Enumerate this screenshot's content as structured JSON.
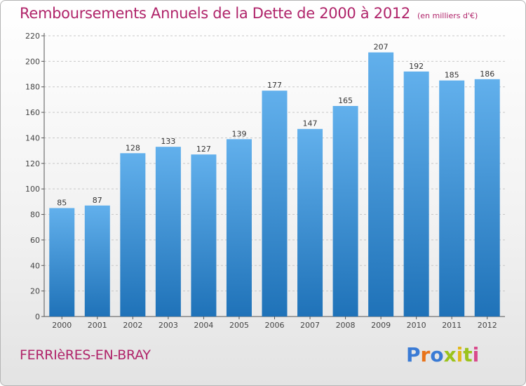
{
  "header": {
    "title": "Remboursements Annuels de la Dette de 2000 à 2012",
    "unit": "(en milliers d'€)"
  },
  "footer": {
    "commune": "FERRIèRES-EN-BRAY",
    "logo_text": "Proxiti",
    "logo_colors": [
      "#3a7bd5",
      "#e8731a",
      "#3a7bd5",
      "#9bc31c",
      "#e2b81a",
      "#9bc31c",
      "#d94a8c"
    ]
  },
  "colors": {
    "bar_top": "#62b0ec",
    "bar_bottom": "#1f72b8",
    "title": "#b0246a",
    "grid": "#c8c8c8"
  },
  "chart_data": {
    "type": "bar",
    "categories": [
      "2000",
      "2001",
      "2002",
      "2003",
      "2004",
      "2005",
      "2006",
      "2007",
      "2008",
      "2009",
      "2010",
      "2011",
      "2012"
    ],
    "values": [
      85,
      87,
      128,
      133,
      127,
      139,
      177,
      147,
      165,
      207,
      192,
      185,
      186
    ],
    "title": "Remboursements Annuels de la Dette de 2000 à 2012",
    "xlabel": "",
    "ylabel": "",
    "ylim": [
      0,
      220
    ],
    "yticks": [
      0,
      20,
      40,
      60,
      80,
      100,
      120,
      140,
      160,
      180,
      200,
      220
    ],
    "grid": true,
    "data_labels": true
  }
}
